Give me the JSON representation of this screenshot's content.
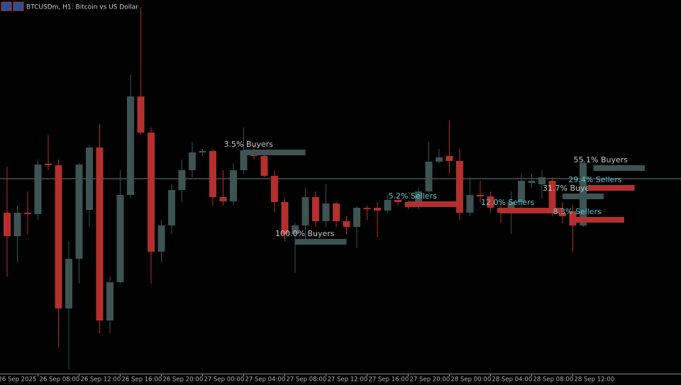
{
  "chart_data": {
    "type": "candlestick",
    "title": "BTCUSDm, H1:  Bitcoin vs US Dollar",
    "categories": [
      "26 Sep 2025",
      null,
      null,
      null,
      "26 Sep 08:00",
      null,
      null,
      null,
      "26 Sep 12:00",
      null,
      null,
      null,
      "26 Sep 16:00",
      null,
      null,
      null,
      "26 Sep 20:00",
      null,
      null,
      null,
      "27 Sep 00:00",
      null,
      null,
      null,
      "27 Sep 04:00",
      null,
      null,
      null,
      "27 Sep 08:00",
      null,
      null,
      null,
      "27 Sep 12:00",
      null,
      null,
      null,
      "27 Sep 16:00",
      null,
      null,
      null,
      "27 Sep 20:00",
      null,
      null,
      null,
      "28 Sep 00:00",
      null,
      null,
      null,
      "28 Sep 04:00",
      null,
      null,
      null,
      "28 Sep 08:00",
      null,
      null,
      null,
      "28 Sep 12:00",
      null
    ],
    "open": [
      null,
      227,
      194,
      227,
      225,
      296,
      294,
      92,
      162,
      231,
      319,
      75,
      129,
      252,
      391,
      340,
      172,
      209,
      259,
      287,
      312,
      314,
      249,
      243,
      287,
      315,
      307,
      279,
      242,
      197,
      209,
      249,
      215,
      240,
      215,
      207,
      234,
      234,
      230,
      245,
      242,
      235,
      257,
      299,
      307,
      300,
      227,
      252,
      250,
      234,
      227,
      242,
      269,
      267,
      272,
      227,
      229,
      209
    ],
    "high": [
      null,
      292,
      237,
      257,
      302,
      337,
      302,
      187,
      297,
      322,
      352,
      137,
      287,
      422,
      517,
      347,
      217,
      267,
      302,
      327,
      317,
      317,
      287,
      297,
      347,
      322,
      312,
      287,
      247,
      212,
      262,
      257,
      267,
      242,
      222,
      237,
      237,
      242,
      252,
      247,
      244,
      262,
      327,
      317,
      357,
      317,
      277,
      272,
      257,
      242,
      257,
      282,
      282,
      287,
      277,
      242,
      237,
      302
    ],
    "low": [
      null,
      137,
      157,
      197,
      217,
      287,
      37,
      7,
      127,
      207,
      57,
      57,
      127,
      247,
      337,
      127,
      157,
      197,
      242,
      277,
      307,
      237,
      237,
      237,
      282,
      302,
      277,
      227,
      187,
      142,
      187,
      207,
      207,
      207,
      197,
      177,
      217,
      192,
      227,
      237,
      232,
      232,
      255,
      297,
      282,
      217,
      222,
      242,
      227,
      212,
      197,
      227,
      262,
      247,
      222,
      212,
      172,
      207
    ],
    "close": [
      null,
      194,
      227,
      225,
      295,
      294,
      92,
      162,
      295,
      319,
      75,
      129,
      252,
      391,
      340,
      172,
      209,
      259,
      287,
      312,
      314,
      249,
      243,
      287,
      315,
      307,
      279,
      242,
      197,
      209,
      249,
      215,
      240,
      215,
      207,
      234,
      232,
      230,
      245,
      242,
      235,
      257,
      299,
      305,
      300,
      227,
      252,
      250,
      234,
      227,
      242,
      272,
      272,
      277,
      227,
      222,
      209,
      297
    ],
    "up_color": "#3d5452",
    "down_color": "#b3302e",
    "ylim": [
      0,
      527
    ],
    "price_line": 275,
    "annotations": [
      {
        "text": "3.5% Buyers",
        "level": 312,
        "from": 24,
        "to": 30,
        "color": "#3d5452",
        "text_color": "#c8c8c8"
      },
      {
        "text": "100.0% Buyers",
        "level": 186,
        "from": 29,
        "to": 34,
        "color": "#3d5452",
        "text_color": "#c8c8c8"
      },
      {
        "text": "5.2% Sellers",
        "level": 239,
        "from": 40,
        "to": 45,
        "color": "#b3302e",
        "text_color": "#5fc8d0"
      },
      {
        "text": "12.0% Sellers",
        "level": 230,
        "from": 49,
        "to": 55,
        "color": "#b3302e",
        "text_color": "#5fc8d0"
      },
      {
        "text": "31.7% Buyers",
        "level": 250,
        "from": 55,
        "to": 59,
        "color": "#3d5452",
        "text_color": "#c8c8c8"
      },
      {
        "text": "29.4% Sellers",
        "level": 262,
        "from": 57.5,
        "to": 62,
        "color": "#b3302e",
        "text_color": "#5fc8d0"
      },
      {
        "text": "55.1% Buyers",
        "level": 290,
        "from": 58,
        "to": 63,
        "color": "#3d5452",
        "text_color": "#c8c8c8"
      },
      {
        "text": "8.3% Sellers",
        "level": 217,
        "from": 56,
        "to": 61,
        "color": "#b3302e",
        "text_color": "#5fc8d0"
      }
    ]
  }
}
